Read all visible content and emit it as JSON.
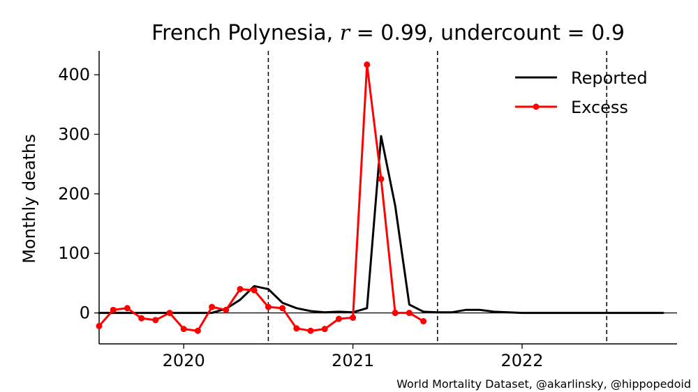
{
  "chart_data": {
    "type": "line",
    "title": "French Polynesia, r = 0.99, undercount = 0.9",
    "title_parts": {
      "prefix": "French Polynesia, ",
      "r_symbol": "r",
      "r_value": " = 0.99, undercount = 0.9"
    },
    "xlabel": "",
    "ylabel": "Monthly deaths",
    "x_range": [
      "2019-07",
      "2022-11"
    ],
    "ylim": [
      -52,
      440
    ],
    "y_ticks": [
      0,
      100,
      200,
      300,
      400
    ],
    "x_ticks": [
      {
        "label": "2020",
        "date": "2020-01"
      },
      {
        "label": "2021",
        "date": "2021-01"
      },
      {
        "label": "2022",
        "date": "2022-01"
      }
    ],
    "vertical_dashed_lines": [
      "2020-07",
      "2021-07",
      "2022-07"
    ],
    "zero_line": true,
    "grid": false,
    "legend": {
      "placement": "top-right",
      "entries": [
        "Reported",
        "Excess"
      ]
    },
    "series": [
      {
        "name": "Reported",
        "color": "#000000",
        "marker": "none",
        "points": [
          [
            "2019-07",
            0
          ],
          [
            "2019-08",
            0
          ],
          [
            "2019-09",
            0
          ],
          [
            "2019-10",
            0
          ],
          [
            "2019-11",
            0
          ],
          [
            "2019-12",
            0
          ],
          [
            "2020-01",
            0
          ],
          [
            "2020-02",
            0
          ],
          [
            "2020-03",
            0
          ],
          [
            "2020-04",
            7
          ],
          [
            "2020-05",
            22
          ],
          [
            "2020-06",
            45
          ],
          [
            "2020-07",
            40
          ],
          [
            "2020-08",
            17
          ],
          [
            "2020-09",
            8
          ],
          [
            "2020-10",
            3
          ],
          [
            "2020-11",
            1
          ],
          [
            "2020-12",
            2
          ],
          [
            "2021-01",
            1
          ],
          [
            "2021-02",
            8
          ],
          [
            "2021-03",
            297
          ],
          [
            "2021-04",
            180
          ],
          [
            "2021-05",
            14
          ],
          [
            "2021-06",
            2
          ],
          [
            "2021-07",
            1
          ],
          [
            "2021-08",
            1
          ],
          [
            "2021-09",
            5
          ],
          [
            "2021-10",
            5
          ],
          [
            "2021-11",
            2
          ],
          [
            "2021-12",
            1
          ],
          [
            "2022-01",
            0
          ],
          [
            "2022-02",
            0
          ],
          [
            "2022-03",
            0
          ],
          [
            "2022-04",
            0
          ],
          [
            "2022-05",
            0
          ],
          [
            "2022-06",
            0
          ],
          [
            "2022-07",
            0
          ],
          [
            "2022-08",
            0
          ],
          [
            "2022-09",
            0
          ],
          [
            "2022-10",
            0
          ],
          [
            "2022-11",
            0
          ]
        ]
      },
      {
        "name": "Excess",
        "color": "#ff0000",
        "marker": "circle",
        "points": [
          [
            "2019-07",
            -22
          ],
          [
            "2019-08",
            5
          ],
          [
            "2019-09",
            8
          ],
          [
            "2019-10",
            -9
          ],
          [
            "2019-11",
            -12
          ],
          [
            "2019-12",
            0
          ],
          [
            "2020-01",
            -27
          ],
          [
            "2020-02",
            -30
          ],
          [
            "2020-03",
            10
          ],
          [
            "2020-04",
            5
          ],
          [
            "2020-05",
            40
          ],
          [
            "2020-06",
            38
          ],
          [
            "2020-07",
            10
          ],
          [
            "2020-08",
            8
          ],
          [
            "2020-09",
            -26
          ],
          [
            "2020-10",
            -30
          ],
          [
            "2020-11",
            -27
          ],
          [
            "2020-12",
            -10
          ],
          [
            "2021-01",
            -8
          ],
          [
            "2021-02",
            417
          ],
          [
            "2021-03",
            225
          ],
          [
            "2021-04",
            0
          ],
          [
            "2021-05",
            0
          ],
          [
            "2021-06",
            -14
          ]
        ]
      }
    ]
  },
  "footer": {
    "credit": "World Mortality Dataset, @akarlinsky, @hippopedoid"
  }
}
